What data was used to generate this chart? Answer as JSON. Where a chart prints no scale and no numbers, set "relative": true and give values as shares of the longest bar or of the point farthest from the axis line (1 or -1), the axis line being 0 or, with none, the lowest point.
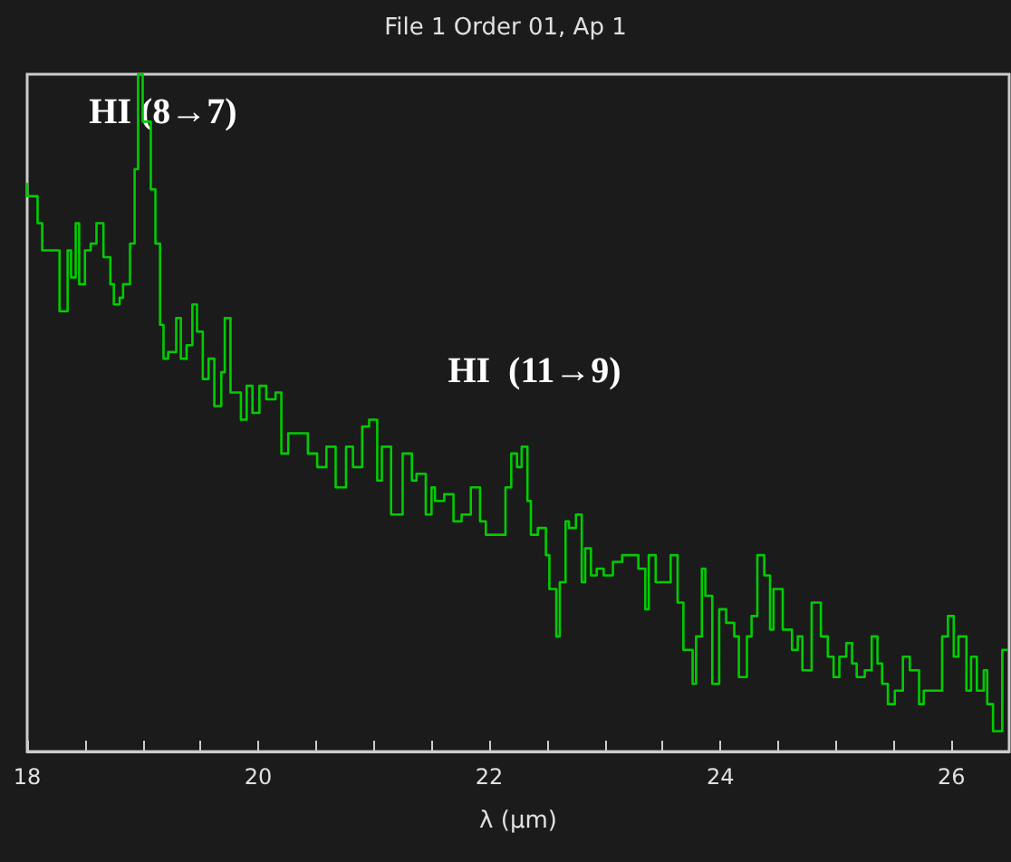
{
  "chart_data": {
    "type": "step",
    "title": "File 1 Order 01, Ap 1",
    "xlabel": "λ (μm)",
    "relative": true,
    "color": "#00cc00",
    "grid": false,
    "xlim": [
      18,
      26.5
    ],
    "xticks": [
      18,
      {
        "value": 18.5,
        "label": null
      },
      {
        "value": 19,
        "label": null
      },
      {
        "value": 19.5,
        "label": null
      },
      20,
      {
        "value": 20.5,
        "label": null
      },
      {
        "value": 21,
        "label": null
      },
      {
        "value": 21.5,
        "label": null
      },
      22,
      {
        "value": 22.5,
        "label": null
      },
      {
        "value": 23,
        "label": null
      },
      {
        "value": 23.5,
        "label": null
      },
      24,
      {
        "value": 24.5,
        "label": null
      },
      {
        "value": 25,
        "label": null
      },
      {
        "value": 25.5,
        "label": null
      },
      26
    ],
    "annotations": [
      "HI (8→7)",
      "HI  (11→9)"
    ],
    "x": [
      18.0,
      18.03,
      18.09,
      18.13,
      18.16,
      18.2,
      18.28,
      18.35,
      18.38,
      18.42,
      18.45,
      18.5,
      18.55,
      18.6,
      18.66,
      18.72,
      18.75,
      18.8,
      18.83,
      18.89,
      18.93,
      18.96,
      19.0,
      19.07,
      19.11,
      19.15,
      19.18,
      19.22,
      19.29,
      19.33,
      19.38,
      19.43,
      19.47,
      19.52,
      19.57,
      19.62,
      19.68,
      19.71,
      19.76,
      19.8,
      19.85,
      19.9,
      19.95,
      20.01,
      20.07,
      20.15,
      20.2,
      20.26,
      20.35,
      20.43,
      20.51,
      20.59,
      20.67,
      20.76,
      20.82,
      20.9,
      20.96,
      21.03,
      21.07,
      21.15,
      21.25,
      21.33,
      21.37,
      21.45,
      21.5,
      21.53,
      21.61,
      21.69,
      21.76,
      21.84,
      21.92,
      21.97,
      22.11,
      22.14,
      22.19,
      22.24,
      22.28,
      22.33,
      22.36,
      22.42,
      22.49,
      22.52,
      22.58,
      22.61,
      22.66,
      22.69,
      22.75,
      22.8,
      22.83,
      22.88,
      22.93,
      22.99,
      23.07,
      23.15,
      23.21,
      23.29,
      23.35,
      23.38,
      23.44,
      23.52,
      23.57,
      23.63,
      23.68,
      23.76,
      23.79,
      23.84,
      23.87,
      23.93,
      23.99,
      24.05,
      24.12,
      24.16,
      24.23,
      24.27,
      24.32,
      24.38,
      24.43,
      24.46,
      24.54,
      24.62,
      24.67,
      24.71,
      24.79,
      24.87,
      24.93,
      24.98,
      25.03,
      25.09,
      25.14,
      25.18,
      25.25,
      25.31,
      25.36,
      25.4,
      25.45,
      25.51,
      25.58,
      25.64,
      25.72,
      25.76,
      25.84,
      25.92,
      25.97,
      26.02,
      26.06,
      26.13,
      26.17,
      26.22,
      26.28,
      26.31,
      26.36,
      26.44,
      26.49
    ],
    "values": [
      0.84,
      0.82,
      0.82,
      0.78,
      0.74,
      0.74,
      0.74,
      0.65,
      0.74,
      0.7,
      0.78,
      0.69,
      0.74,
      0.75,
      0.78,
      0.73,
      0.69,
      0.66,
      0.67,
      0.69,
      0.75,
      0.86,
      1.0,
      0.93,
      0.83,
      0.75,
      0.63,
      0.58,
      0.59,
      0.64,
      0.58,
      0.6,
      0.66,
      0.62,
      0.55,
      0.58,
      0.51,
      0.56,
      0.64,
      0.53,
      0.53,
      0.49,
      0.54,
      0.5,
      0.54,
      0.52,
      0.53,
      0.44,
      0.47,
      0.47,
      0.44,
      0.42,
      0.45,
      0.39,
      0.45,
      0.42,
      0.48,
      0.49,
      0.4,
      0.45,
      0.35,
      0.44,
      0.4,
      0.41,
      0.35,
      0.39,
      0.37,
      0.38,
      0.34,
      0.35,
      0.39,
      0.34,
      0.32,
      0.32,
      0.39,
      0.44,
      0.42,
      0.45,
      0.37,
      0.32,
      0.33,
      0.29,
      0.24,
      0.17,
      0.25,
      0.34,
      0.33,
      0.35,
      0.25,
      0.3,
      0.26,
      0.27,
      0.26,
      0.28,
      0.29,
      0.29,
      0.27,
      0.21,
      0.29,
      0.25,
      0.25,
      0.29,
      0.22,
      0.15,
      0.1,
      0.17,
      0.27,
      0.23,
      0.1,
      0.21,
      0.19,
      0.17,
      0.11,
      0.17,
      0.2,
      0.29,
      0.26,
      0.18,
      0.24,
      0.18,
      0.15,
      0.17,
      0.12,
      0.22,
      0.17,
      0.14,
      0.11,
      0.14,
      0.16,
      0.13,
      0.11,
      0.12,
      0.17,
      0.13,
      0.1,
      0.07,
      0.09,
      0.14,
      0.12,
      0.07,
      0.09,
      0.09,
      0.17,
      0.2,
      0.14,
      0.17,
      0.09,
      0.14,
      0.09,
      0.12,
      0.07,
      0.03,
      0.15
    ]
  }
}
